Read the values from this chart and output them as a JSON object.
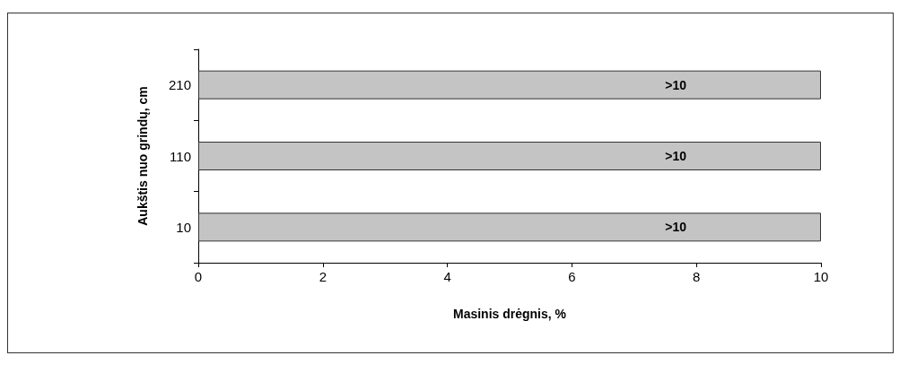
{
  "chart_data": {
    "type": "bar",
    "orientation": "horizontal",
    "categories": [
      "210",
      "110",
      "10"
    ],
    "values": [
      10,
      10,
      10
    ],
    "value_labels": [
      ">10",
      ">10",
      ">10"
    ],
    "color": "#c4c4c4",
    "xlim": [
      0,
      10
    ],
    "xticks": [
      0,
      2,
      4,
      6,
      8,
      10
    ],
    "xlabel": "Masinis drėgnis, %",
    "ylabel": "Aukštis nuo grindų, cm"
  }
}
